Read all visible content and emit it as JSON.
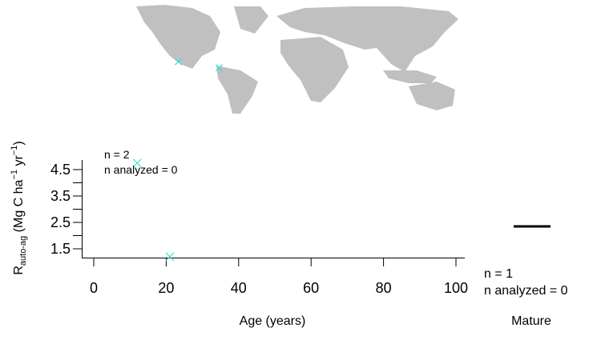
{
  "colors": {
    "land": "#c0c0c0",
    "marker": "#40e0d0",
    "ink": "#000000"
  },
  "map": {
    "site_markers": [
      {
        "lon": -120,
        "lat": 44
      },
      {
        "lon": -76,
        "lat": 39
      }
    ]
  },
  "chart_data": [
    {
      "type": "scatter",
      "marker": "x",
      "xlabel": "Age (years)",
      "ylabel_main": "R",
      "ylabel_sub": "auto-ag",
      "ylabel_units_a": " (Mg C ha",
      "ylabel_sup_a": "−1",
      "ylabel_units_b": " yr",
      "ylabel_sup_b": "−1",
      "ylabel_units_c": ")",
      "xlim": [
        0,
        100
      ],
      "ylim": [
        1.1,
        5.0
      ],
      "xticks": [
        0,
        20,
        40,
        60,
        80,
        100
      ],
      "yticks_labeled": [
        1.5,
        2.5,
        3.5,
        4.5
      ],
      "yticks_minor": [
        2.0,
        3.0,
        4.0
      ],
      "points": [
        {
          "x": 12,
          "y": 4.75
        },
        {
          "x": 21,
          "y": 1.2
        }
      ],
      "annotation": [
        "n = 2",
        "n analyzed = 0"
      ]
    },
    {
      "type": "box",
      "category": "Mature",
      "values": [
        2.35
      ],
      "annotation": [
        "n = 1",
        "n analyzed = 0"
      ]
    }
  ]
}
